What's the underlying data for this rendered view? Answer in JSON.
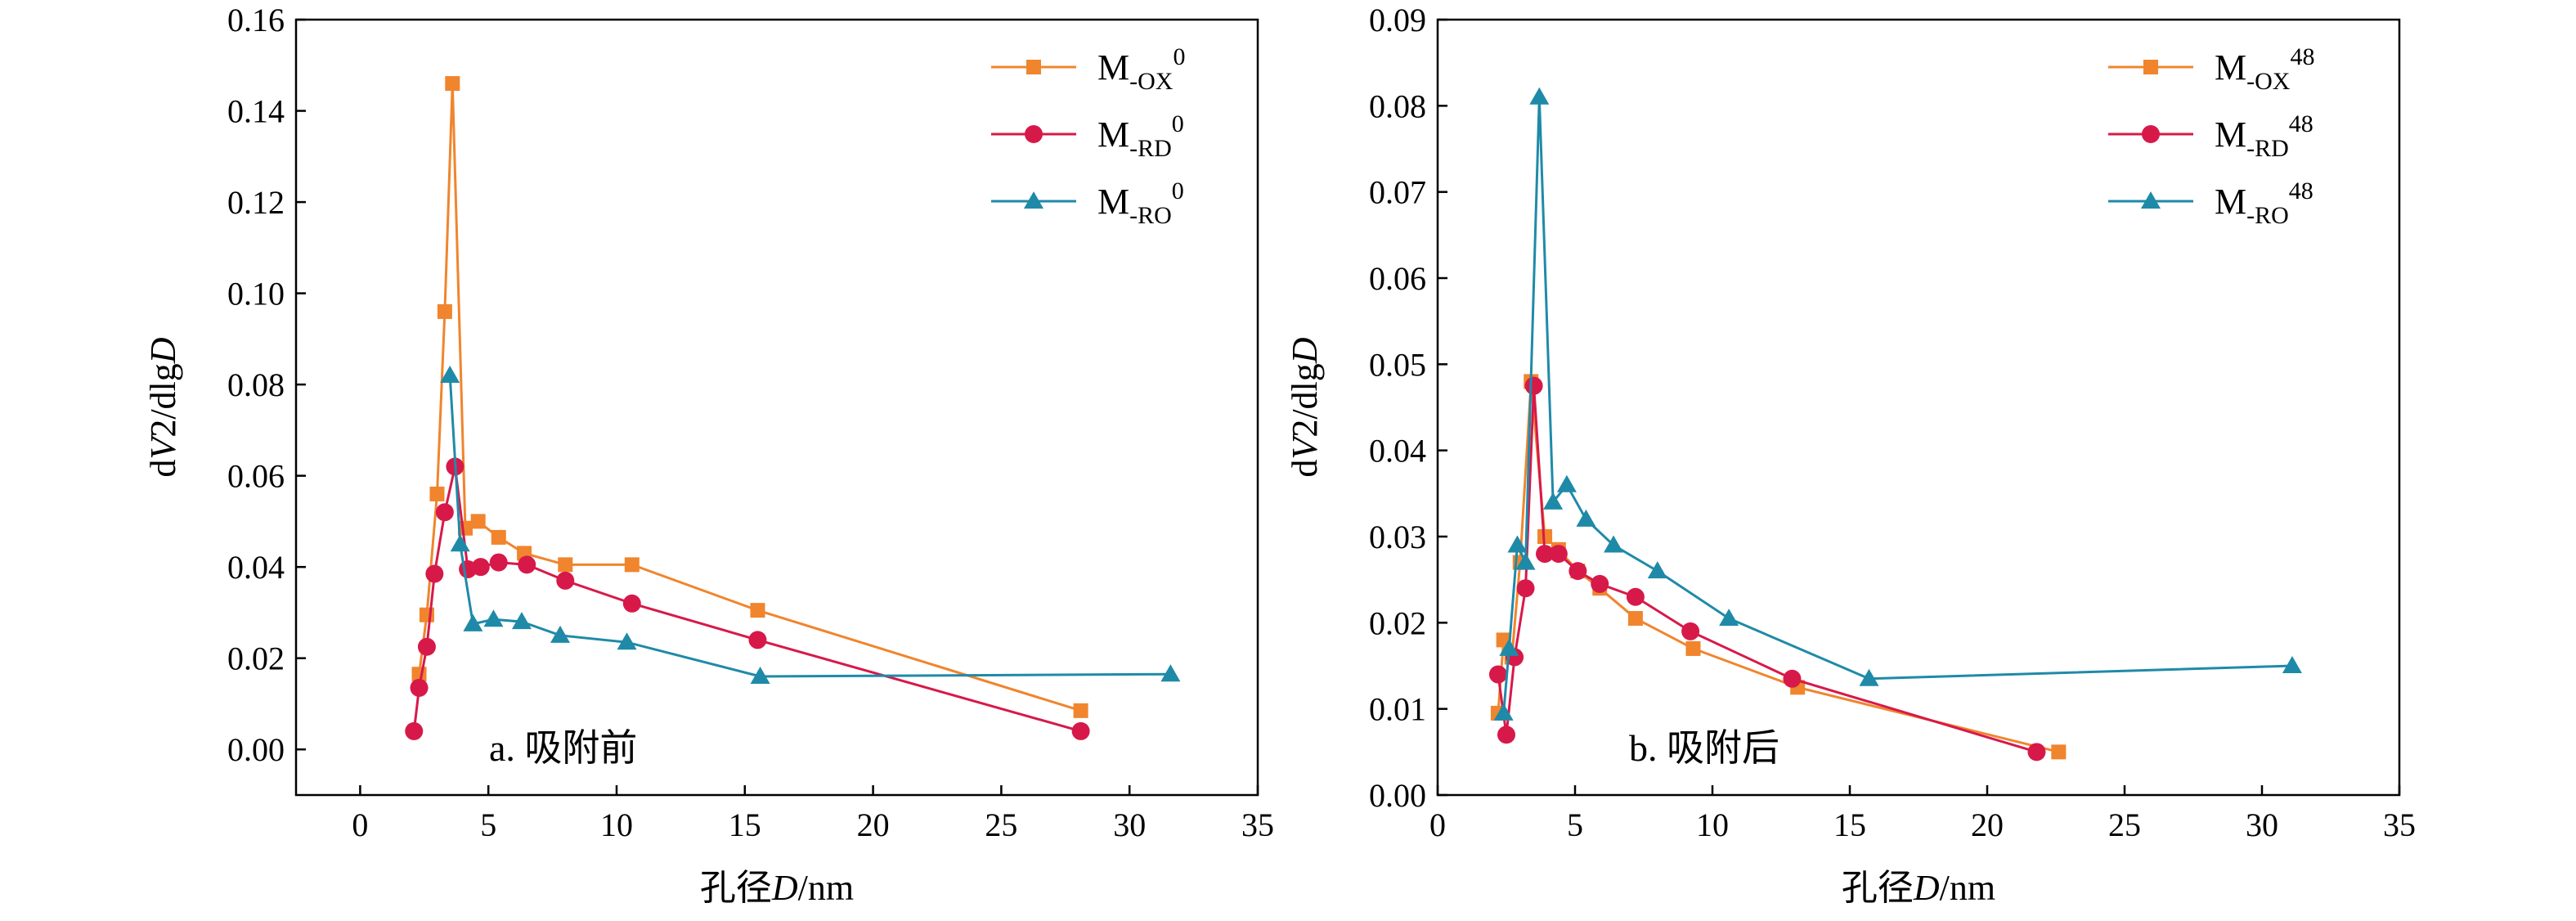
{
  "colors": {
    "ox": "#f0852d",
    "rd": "#d7194a",
    "ro": "#1f8aa8"
  },
  "chart_data": [
    {
      "type": "line",
      "label": "a. 吸附前",
      "xlabel_prefix": "孔径",
      "xlabel_var": "D",
      "xlabel_unit": "/nm",
      "ylabel_prefix": "d",
      "ylabel_var1": "V",
      "ylabel_mid": "2/dlg",
      "ylabel_var2": "D",
      "xlim": [
        -2.5,
        35
      ],
      "ylim": [
        -0.01,
        0.16
      ],
      "xticks": [
        0,
        5,
        10,
        15,
        20,
        25,
        30,
        35
      ],
      "yticks": [
        0.0,
        0.02,
        0.04,
        0.06,
        0.08,
        0.1,
        0.12,
        0.14,
        0.16
      ],
      "ytick_labels": [
        "0.00",
        "0.02",
        "0.04",
        "0.06",
        "0.08",
        "0.10",
        "0.12",
        "0.14",
        "0.16"
      ],
      "legend_position": "top-right",
      "series": [
        {
          "name_main": "M",
          "name_sub": "-OX",
          "name_sup": "0",
          "color": "ox",
          "marker": "square",
          "x": [
            2.3,
            2.6,
            3.0,
            3.3,
            3.6,
            4.1,
            4.6,
            5.4,
            6.4,
            8.0,
            10.6,
            15.5,
            28.1
          ],
          "y": [
            0.0165,
            0.0295,
            0.056,
            0.096,
            0.146,
            0.0485,
            0.05,
            0.0465,
            0.043,
            0.0405,
            0.0405,
            0.0305,
            0.0085
          ]
        },
        {
          "name_main": "M",
          "name_sub": "-RD",
          "name_sup": "0",
          "color": "rd",
          "marker": "circle",
          "x": [
            2.1,
            2.3,
            2.6,
            2.9,
            3.3,
            3.7,
            4.2,
            4.7,
            5.4,
            6.5,
            8.0,
            10.6,
            15.5,
            28.1
          ],
          "y": [
            0.004,
            0.0135,
            0.0225,
            0.0385,
            0.052,
            0.062,
            0.0395,
            0.04,
            0.041,
            0.0405,
            0.037,
            0.032,
            0.024,
            0.004
          ]
        },
        {
          "name_main": "M",
          "name_sub": "-RO",
          "name_sup": "0",
          "color": "ro",
          "marker": "triangle",
          "x": [
            3.5,
            3.9,
            4.4,
            5.2,
            6.3,
            7.8,
            10.4,
            15.6,
            31.6
          ],
          "y": [
            0.082,
            0.045,
            0.0275,
            0.0285,
            0.028,
            0.025,
            0.0235,
            0.016,
            0.0165
          ]
        }
      ]
    },
    {
      "type": "line",
      "label": "b. 吸附后",
      "xlabel_prefix": "孔径",
      "xlabel_var": "D",
      "xlabel_unit": "/nm",
      "ylabel_prefix": "d",
      "ylabel_var1": "V",
      "ylabel_mid": "2/dlg",
      "ylabel_var2": "D",
      "xlim": [
        0,
        35
      ],
      "ylim": [
        0,
        0.09
      ],
      "xticks": [
        0,
        5,
        10,
        15,
        20,
        25,
        30,
        35
      ],
      "yticks": [
        0.0,
        0.01,
        0.02,
        0.03,
        0.04,
        0.05,
        0.06,
        0.07,
        0.08,
        0.09
      ],
      "ytick_labels": [
        "0.00",
        "0.01",
        "0.02",
        "0.03",
        "0.04",
        "0.05",
        "0.06",
        "0.07",
        "0.08",
        "0.09"
      ],
      "legend_position": "top-right",
      "series": [
        {
          "name_main": "M",
          "name_sub": "-OX",
          "name_sup": "48",
          "color": "ox",
          "marker": "square",
          "x": [
            2.2,
            2.4,
            2.7,
            3.0,
            3.4,
            3.9,
            4.4,
            5.1,
            5.9,
            7.2,
            9.3,
            13.1,
            22.6
          ],
          "y": [
            0.0095,
            0.018,
            0.016,
            0.027,
            0.048,
            0.03,
            0.0285,
            0.026,
            0.024,
            0.0205,
            0.017,
            0.0125,
            0.005
          ]
        },
        {
          "name_main": "M",
          "name_sub": "-RD",
          "name_sup": "48",
          "color": "rd",
          "marker": "circle",
          "x": [
            2.2,
            2.5,
            2.8,
            3.2,
            3.5,
            3.9,
            4.4,
            5.1,
            5.9,
            7.2,
            9.2,
            12.9,
            21.8
          ],
          "y": [
            0.014,
            0.007,
            0.016,
            0.024,
            0.0475,
            0.028,
            0.028,
            0.026,
            0.0245,
            0.023,
            0.019,
            0.0135,
            0.005
          ]
        },
        {
          "name_main": "M",
          "name_sub": "-RO",
          "name_sup": "48",
          "color": "ro",
          "marker": "triangle",
          "x": [
            2.4,
            2.6,
            2.9,
            3.2,
            3.7,
            4.2,
            4.7,
            5.4,
            6.4,
            8.0,
            10.6,
            15.7,
            31.1
          ],
          "y": [
            0.0095,
            0.017,
            0.029,
            0.027,
            0.081,
            0.034,
            0.036,
            0.032,
            0.029,
            0.026,
            0.0205,
            0.0135,
            0.015
          ]
        }
      ]
    }
  ]
}
